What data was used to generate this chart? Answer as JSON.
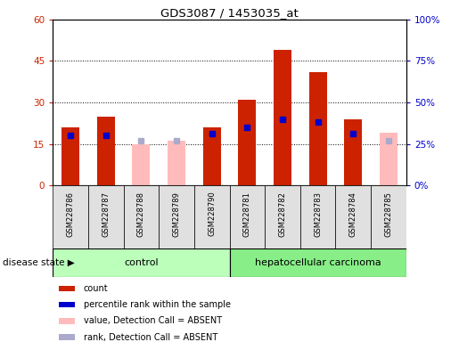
{
  "title": "GDS3087 / 1453035_at",
  "samples": [
    "GSM228786",
    "GSM228787",
    "GSM228788",
    "GSM228789",
    "GSM228790",
    "GSM228781",
    "GSM228782",
    "GSM228783",
    "GSM228784",
    "GSM228785"
  ],
  "count_values": [
    21,
    25,
    null,
    null,
    21,
    31,
    49,
    41,
    24,
    null
  ],
  "count_absent": [
    null,
    null,
    15,
    16,
    null,
    null,
    null,
    null,
    null,
    19
  ],
  "rank_values": [
    30,
    30,
    null,
    null,
    31,
    35,
    40,
    38,
    31,
    null
  ],
  "rank_absent": [
    null,
    null,
    27,
    27,
    null,
    null,
    null,
    null,
    null,
    27
  ],
  "ylim_left": [
    0,
    60
  ],
  "ylim_right": [
    0,
    100
  ],
  "yticks_left": [
    0,
    15,
    30,
    45,
    60
  ],
  "yticks_right": [
    0,
    25,
    50,
    75,
    100
  ],
  "ytick_labels_left": [
    "0",
    "15",
    "30",
    "45",
    "60"
  ],
  "ytick_labels_right": [
    "0%",
    "25%",
    "50%",
    "75%",
    "100%"
  ],
  "count_color": "#cc2200",
  "count_absent_color": "#ffbbbb",
  "rank_color": "#0000cc",
  "rank_absent_color": "#aaaacc",
  "control_bg": "#bbffbb",
  "carcinoma_bg": "#88ee88",
  "legend_count": "count",
  "legend_rank": "percentile rank within the sample",
  "legend_count_absent": "value, Detection Call = ABSENT",
  "legend_rank_absent": "rank, Detection Call = ABSENT",
  "disease_state_label": "disease state",
  "control_label": "control",
  "carcinoma_label": "hepatocellular carcinoma",
  "bar_width": 0.5
}
